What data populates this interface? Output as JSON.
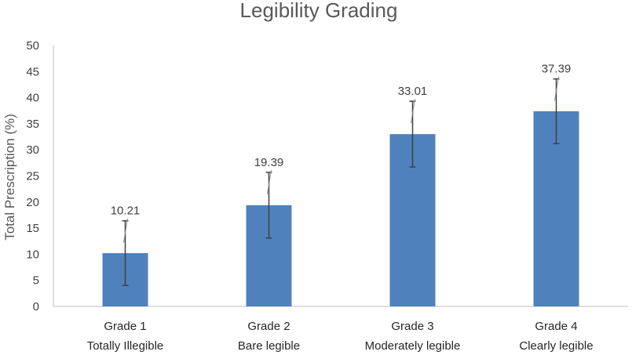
{
  "chart_data": {
    "type": "bar",
    "title": "Legibility Grading",
    "xlabel": "",
    "ylabel": "Total Prescription (%)",
    "ylim": [
      0,
      50
    ],
    "ytick_step": 5,
    "categories": [
      {
        "line1": "Grade 1",
        "line2": "Totally Illegible"
      },
      {
        "line1": "Grade 2",
        "line2": "Bare legible"
      },
      {
        "line1": "Grade 3",
        "line2": "Moderately legible"
      },
      {
        "line1": "Grade 4",
        "line2": "Clearly legible"
      }
    ],
    "values": [
      10.21,
      19.39,
      33.01,
      37.39
    ],
    "data_labels": [
      "10.21",
      "19.39",
      "33.01",
      "37.39"
    ],
    "error": [
      6.2,
      6.3,
      6.3,
      6.2
    ],
    "bar_color": "#4f81bd",
    "error_color": "#404040",
    "grid": false
  }
}
